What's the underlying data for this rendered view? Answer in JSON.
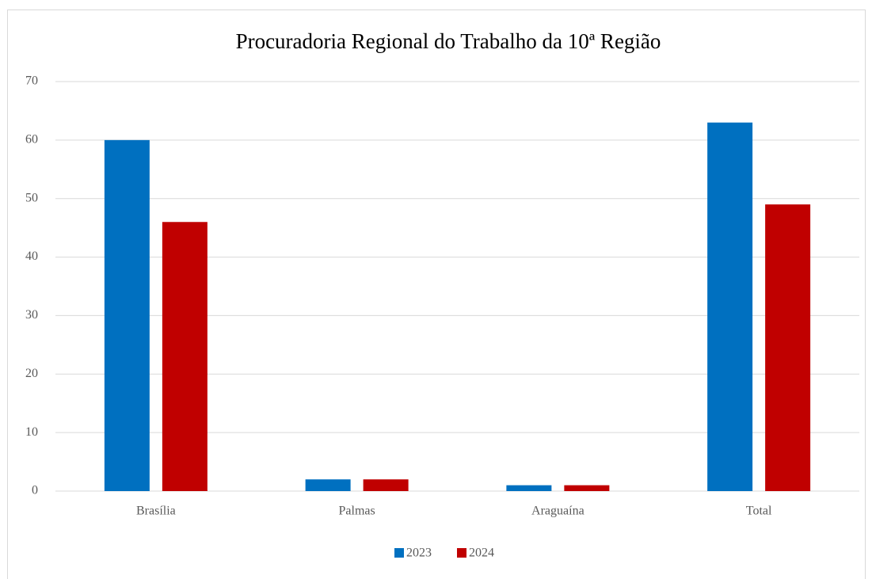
{
  "chart_data": {
    "type": "bar",
    "title": "Procuradoria Regional do Trabalho da 10ª Região",
    "categories": [
      "Brasília",
      "Palmas",
      "Araguaína",
      "Total"
    ],
    "series": [
      {
        "name": "2023",
        "color": "#0070c0",
        "values": [
          60,
          2,
          1,
          63
        ]
      },
      {
        "name": "2024",
        "color": "#c00000",
        "values": [
          46,
          2,
          1,
          49
        ]
      }
    ],
    "ylim": [
      0,
      70
    ],
    "yticks": [
      0,
      10,
      20,
      30,
      40,
      50,
      60,
      70
    ],
    "grid": true,
    "legend": "bottom"
  }
}
